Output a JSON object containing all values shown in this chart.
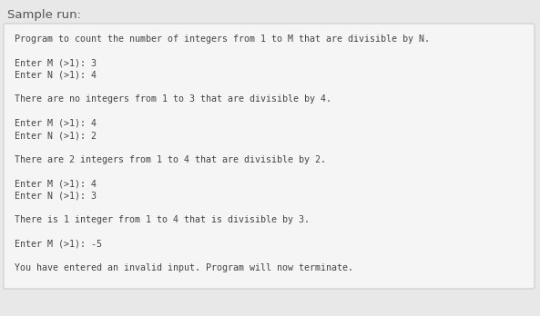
{
  "title": "Sample run:",
  "title_fontsize": 9.5,
  "title_color": "#555555",
  "title_fontweight": "normal",
  "bg_color": "#e8e8e8",
  "box_color": "#f5f5f5",
  "box_border_color": "#cccccc",
  "text_color": "#444444",
  "font_family": "monospace",
  "font_size": 7.2,
  "lines": [
    "Program to count the number of integers from 1 to M that are divisible by N.",
    "",
    "Enter M (>1): 3",
    "Enter N (>1): 4",
    "",
    "There are no integers from 1 to 3 that are divisible by 4.",
    "",
    "Enter M (>1): 4",
    "Enter N (>1): 2",
    "",
    "There are 2 integers from 1 to 4 that are divisible by 2.",
    "",
    "Enter M (>1): 4",
    "Enter N (>1): 3",
    "",
    "There is 1 integer from 1 to 4 that is divisible by 3.",
    "",
    "Enter M (>1): -5",
    "",
    "You have entered an invalid input. Program will now terminate."
  ]
}
